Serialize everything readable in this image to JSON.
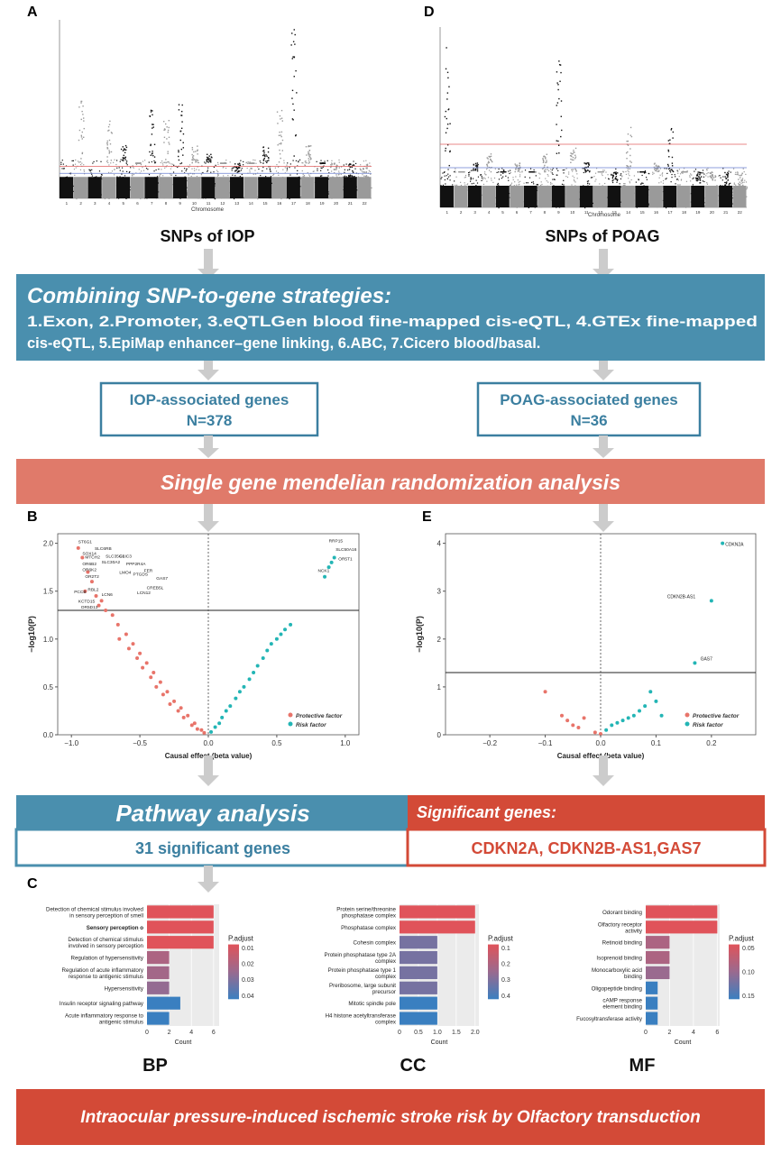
{
  "colors": {
    "teal_box": "#4a8fae",
    "salmon_box": "#e07a6a",
    "red_box": "#d34a37",
    "protective": "#e8746a",
    "risk": "#23b5b5",
    "manhattan_dark": "#111111",
    "manhattan_light": "#9a9a9a",
    "bar_red": "#e0535a",
    "bar_purple": "#9a6a8f",
    "bar_blue": "#3a7fc0",
    "arrow": "#cccccc"
  },
  "panel_letters": {
    "a": "A",
    "b": "B",
    "c": "C",
    "d": "D",
    "e": "E"
  },
  "manhattan": {
    "xlabel": "Chromosome",
    "chromosomes": [
      "1",
      "2",
      "3",
      "4",
      "5",
      "6",
      "7",
      "8",
      "9",
      "10",
      "11",
      "12",
      "13",
      "14",
      "15",
      "16",
      "17",
      "18",
      "19",
      "20",
      "21",
      "22"
    ],
    "iop_caption": "SNPs of IOP",
    "poag_caption": "SNPs of POAG"
  },
  "strategies": {
    "title": "Combining SNP-to-gene strategies:",
    "line1": "1.Exon, 2.Promoter, 3.eQTLGen blood fine-mapped cis-eQTL, 4.GTEx fine-mapped",
    "line2": "cis-eQTL, 5.EpiMap enhancer–gene linking, 6.ABC, 7.Cicero blood/basal."
  },
  "gene_boxes": {
    "iop_title": "IOP-associated genes",
    "iop_n": "N=378",
    "poag_title": "POAG-associated genes",
    "poag_n": "N=36"
  },
  "mr_banner": "Single gene mendelian randomization analysis",
  "volcano_iop": {
    "ylabel": "−log10(P)",
    "xlabel": "Causal effect (beta value)",
    "xticks": [
      "−1.0",
      "−0.5",
      "0.0",
      "0.5",
      "1.0"
    ],
    "yticks": [
      "0.0",
      "0.5",
      "1.0",
      "1.5",
      "2.0"
    ],
    "legend_protective": "Protective factor",
    "legend_risk": "Risk factor",
    "gene_labels": [
      "ST6G1",
      "SLC6RB",
      "SOX14",
      "MTCH2",
      "OR6B2",
      "CLIC3",
      "SLC35G3",
      "OR6K2",
      "PPP2R4A",
      "SLC30A2",
      "FER",
      "OR2T2",
      "LMO4",
      "GAS7",
      "PTGDS",
      "LCN12",
      "CREB5L",
      "RRP15",
      "SLC50A16",
      "OR5T1",
      "NCK1",
      "PCCB",
      "RBL2",
      "LCN6",
      "KCTD15",
      "OR5D13"
    ]
  },
  "volcano_poag": {
    "ylabel": "−log10(P)",
    "xlabel": "Causal effect (beta value)",
    "xticks": [
      "−0.2",
      "−0.1",
      "0.0",
      "0.1",
      "0.2"
    ],
    "yticks": [
      "0",
      "1",
      "2",
      "3",
      "4"
    ],
    "legend_protective": "Protective factor",
    "legend_risk": "Risk factor",
    "gene_labels": [
      "CDKN2A",
      "CDKN2B-AS1",
      "GAS7"
    ]
  },
  "pathway": {
    "title": "Pathway analysis",
    "count_text": "31 significant genes"
  },
  "significant": {
    "title": "Significant genes:",
    "genes_text": "CDKN2A, CDKN2B-AS1,GAS7"
  },
  "enrichment": {
    "bp": {
      "label": "BP",
      "xlabel": "Count",
      "legend_title": "P.adjust",
      "legend_ticks": [
        "0.01",
        "0.02",
        "0.03",
        "0.04"
      ],
      "xticks": [
        "0",
        "2",
        "4",
        "6"
      ]
    },
    "cc": {
      "label": "CC",
      "xlabel": "Count",
      "legend_title": "P.adjust",
      "legend_ticks": [
        "0.1",
        "0.2",
        "0.3",
        "0.4"
      ],
      "xticks": [
        "0",
        "0.5",
        "1.0",
        "1.5",
        "2.0"
      ]
    },
    "mf": {
      "label": "MF",
      "xlabel": "Count",
      "legend_title": "P.adjust",
      "legend_ticks": [
        "0.05",
        "0.10",
        "0.15"
      ],
      "xticks": [
        "0",
        "2",
        "4",
        "6"
      ]
    }
  },
  "chart_data": [
    {
      "type": "bar",
      "title": "BP",
      "orientation": "horizontal",
      "xlabel": "Count",
      "categories": [
        "Detection of chemical stimulus involved in sensory perception of smell",
        "Sensory perception o",
        "Detection of chemical stimulus involved in sensory perception",
        "Regulation of hypersensitivity",
        "Regulation of acute inflammatory response to antigenic stimulus",
        "Hypersensitivity",
        "Insulin receptor signaling pathway",
        "Acute inflammatory response to antigenic stimulus"
      ],
      "values": [
        6,
        6,
        6,
        2,
        2,
        2,
        3,
        2
      ],
      "p_adjust": [
        0.008,
        0.008,
        0.008,
        0.02,
        0.022,
        0.025,
        0.04,
        0.04
      ],
      "xlim": [
        0,
        6.5
      ]
    },
    {
      "type": "bar",
      "title": "CC",
      "orientation": "horizontal",
      "xlabel": "Count",
      "categories": [
        "Protein serine/threonine phosphatase complex",
        "Phosphatase complex",
        "Cohesin complex",
        "Protein phosphatase type 2A complex",
        "Protein phosphatase type 1 complex",
        "Preribosome, large subunit precursor",
        "Mitotic spindle pole",
        "H4 histone acetyltransferase complex"
      ],
      "values": [
        2,
        2,
        1,
        1,
        1,
        1,
        1,
        1
      ],
      "p_adjust": [
        0.08,
        0.08,
        0.3,
        0.3,
        0.3,
        0.3,
        0.4,
        0.4
      ],
      "xlim": [
        0,
        2.1
      ]
    },
    {
      "type": "bar",
      "title": "MF",
      "orientation": "horizontal",
      "xlabel": "Count",
      "categories": [
        "Odorant binding",
        "Olfactory receptor activity",
        "Retinoid binding",
        "Isoprenoid binding",
        "Monocarboxylic acid binding",
        "Oligopeptide binding",
        "cAMP response element binding",
        "Fucosyltransferase activity"
      ],
      "values": [
        6,
        6,
        2,
        2,
        2,
        1,
        1,
        1
      ],
      "p_adjust": [
        0.02,
        0.02,
        0.08,
        0.08,
        0.1,
        0.18,
        0.18,
        0.18
      ],
      "xlim": [
        0,
        6.2
      ]
    },
    {
      "type": "scatter",
      "title": "",
      "xlabel": "Causal effect (beta value)",
      "ylabel": "−log10(P)",
      "xlim": [
        -1.1,
        1.1
      ],
      "ylim": [
        0,
        2.1
      ],
      "threshold": 1.3,
      "series": [
        {
          "name": "Protective factor",
          "x": [
            -0.95,
            -0.92,
            -0.88,
            -0.85,
            -0.9,
            -0.82,
            -0.78,
            -0.8,
            -0.75,
            -0.7,
            -0.66,
            -0.6,
            -0.55,
            -0.5,
            -0.45,
            -0.4,
            -0.35,
            -0.3,
            -0.25,
            -0.2,
            -0.15,
            -0.1,
            -0.05,
            -0.65,
            -0.58,
            -0.52,
            -0.48,
            -0.42,
            -0.38,
            -0.33,
            -0.28,
            -0.22,
            -0.18,
            -0.12,
            -0.08,
            -0.03
          ],
          "y": [
            1.95,
            1.85,
            1.7,
            1.6,
            1.5,
            1.45,
            1.4,
            1.35,
            1.3,
            1.25,
            1.15,
            1.05,
            0.95,
            0.85,
            0.75,
            0.65,
            0.55,
            0.45,
            0.35,
            0.28,
            0.2,
            0.12,
            0.05,
            1.0,
            0.9,
            0.8,
            0.7,
            0.6,
            0.5,
            0.42,
            0.32,
            0.25,
            0.18,
            0.1,
            0.06,
            0.02
          ]
        },
        {
          "name": "Risk factor",
          "x": [
            0.02,
            0.05,
            0.08,
            0.1,
            0.13,
            0.16,
            0.2,
            0.23,
            0.26,
            0.3,
            0.33,
            0.36,
            0.4,
            0.43,
            0.46,
            0.5,
            0.53,
            0.56,
            0.6,
            0.85,
            0.88,
            0.9,
            0.92
          ],
          "y": [
            0.03,
            0.08,
            0.12,
            0.18,
            0.25,
            0.3,
            0.38,
            0.45,
            0.5,
            0.58,
            0.65,
            0.72,
            0.8,
            0.88,
            0.95,
            1.0,
            1.05,
            1.1,
            1.15,
            1.65,
            1.75,
            1.8,
            1.85
          ]
        }
      ]
    },
    {
      "type": "scatter",
      "title": "",
      "xlabel": "Causal effect (beta value)",
      "ylabel": "−log10(P)",
      "xlim": [
        -0.28,
        0.28
      ],
      "ylim": [
        0,
        4.2
      ],
      "threshold": 1.3,
      "series": [
        {
          "name": "Protective factor",
          "x": [
            -0.1,
            -0.07,
            -0.06,
            -0.05,
            -0.04,
            -0.03,
            -0.01,
            0.0
          ],
          "y": [
            0.9,
            0.4,
            0.3,
            0.2,
            0.15,
            0.35,
            0.05,
            0.02
          ]
        },
        {
          "name": "Risk factor",
          "x": [
            0.01,
            0.02,
            0.03,
            0.04,
            0.05,
            0.06,
            0.07,
            0.08,
            0.09,
            0.1,
            0.11,
            0.17,
            0.2,
            0.22
          ],
          "y": [
            0.1,
            0.2,
            0.25,
            0.3,
            0.35,
            0.4,
            0.5,
            0.6,
            0.9,
            0.7,
            0.4,
            1.5,
            2.8,
            4.0
          ]
        }
      ]
    }
  ]
}
